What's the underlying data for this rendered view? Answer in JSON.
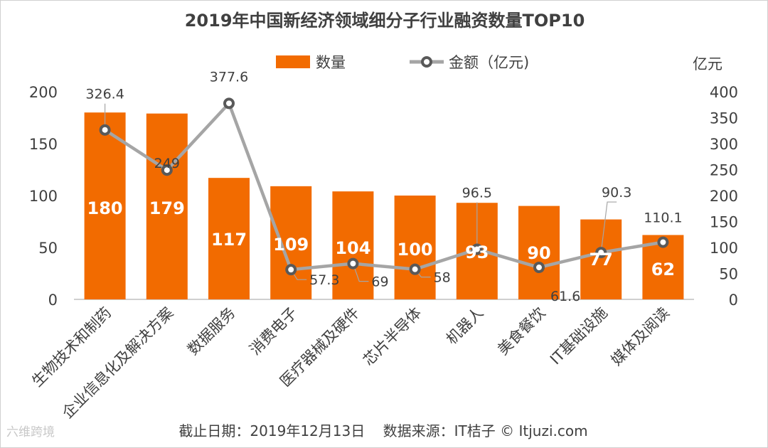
{
  "chart_data": {
    "type": "bar",
    "title": "2019年中国新经济领域细分子行业融资数量TOP10",
    "categories": [
      "生物技术和制药",
      "企业信息化及解决方案",
      "数据服务",
      "消费电子",
      "医疗器械及硬件",
      "芯片半导体",
      "机器人",
      "美食餐饮",
      "IT基础设施",
      "媒体及阅读"
    ],
    "series": [
      {
        "name": "数量",
        "type": "bar",
        "axis": "left",
        "color": "#f26b00",
        "values": [
          180,
          179,
          117,
          109,
          104,
          100,
          93,
          90,
          77,
          62
        ]
      },
      {
        "name": "金额（亿元)",
        "type": "line",
        "axis": "right",
        "color": "#a5a5a5",
        "values": [
          326.4,
          249,
          377.6,
          57.3,
          69,
          58,
          96.5,
          61.6,
          90.3,
          110.1
        ]
      }
    ],
    "y_left": {
      "min": 0,
      "max": 200,
      "ticks": [
        0,
        50,
        100,
        150,
        200
      ]
    },
    "y_right": {
      "min": 0,
      "max": 400,
      "ticks": [
        0,
        50,
        100,
        150,
        200,
        250,
        300,
        350,
        400
      ],
      "unit": "亿元"
    },
    "bar_labels": [
      "180",
      "179",
      "117",
      "109",
      "104",
      "100",
      "93",
      "90",
      "77",
      "62"
    ],
    "line_labels": [
      "326.4",
      "249",
      "377.6",
      "57.3",
      "69",
      "58",
      "96.5",
      "61.6",
      "90.3",
      "110.1"
    ]
  },
  "footer": {
    "text": "截止日期：2019年12月13日    数据来源：IT桔子 © Itjuzi.com"
  },
  "watermark": {
    "text": "六维跨境"
  }
}
